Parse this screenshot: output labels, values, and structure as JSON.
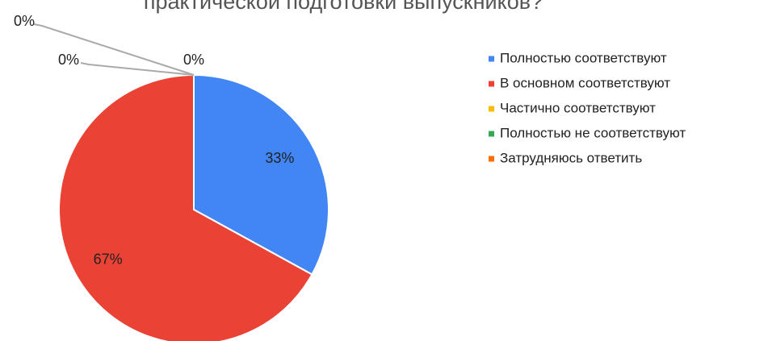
{
  "chart_data": {
    "type": "pie",
    "title": "практической подготовки выпускников?",
    "categories": [
      "Полностью соответствуют",
      "В основном соответствуют",
      "Частично соответствуют",
      "Полностью не соответствуют",
      "Затрудняюсь ответить"
    ],
    "values": [
      33,
      67,
      0,
      0,
      0
    ],
    "value_labels": [
      "33%",
      "67%",
      "0%",
      "0%",
      "0%"
    ],
    "colors": [
      "#4285f4",
      "#ea4335",
      "#fbbc04",
      "#34a853",
      "#ff6d01"
    ],
    "legend": "right"
  }
}
